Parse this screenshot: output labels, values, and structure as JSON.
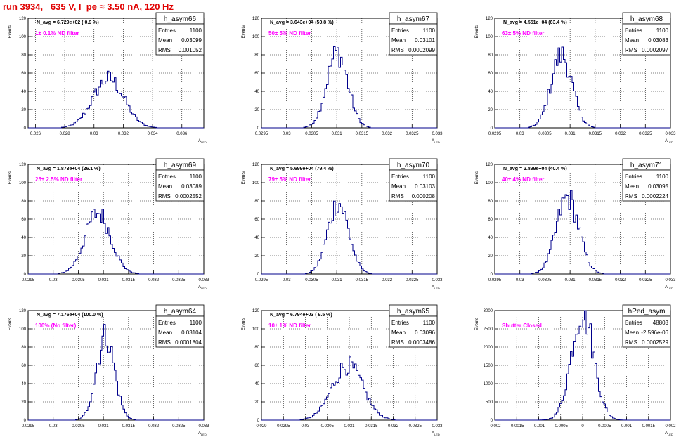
{
  "canvas_title": "run 3934,   635 V, I_pe ≈ 3.50 nA, 120 Hz",
  "colors": {
    "title": "#e00000",
    "annotation": "#ff00ff",
    "histogram": "#00008b",
    "grid": "#000000"
  },
  "panel_labels": {
    "entries": "Entries",
    "mean": "Mean",
    "rms": "RMS",
    "xlabel": "A",
    "xlabel_sub": "LED",
    "ylabel": "Events"
  },
  "chart_data": [
    {
      "type": "histogram",
      "title": "h_asym66",
      "stats": {
        "entries": "1100",
        "mean": "0.03099",
        "rms": "0.001052"
      },
      "n_avg": "N_avg = 6.729e+02 ( 0.9 %)",
      "filter": "1± 0.1% ND filter",
      "xlim": [
        0.0255,
        0.0375
      ],
      "ylim": [
        0,
        120
      ],
      "xticks": [
        "0.026",
        "0.028",
        "0.03",
        "0.032",
        "0.034",
        "0.036"
      ],
      "yticks": [
        "0",
        "20",
        "40",
        "60",
        "80",
        "100",
        "120"
      ],
      "peak": 54,
      "center": 0.03099,
      "sigma": 0.001052,
      "grid": true
    },
    {
      "type": "histogram",
      "title": "h_asym67",
      "stats": {
        "entries": "1100",
        "mean": "0.03101",
        "rms": "0.0002099"
      },
      "n_avg": "N_avg = 3.643e+04 (50.8 %)",
      "filter": "50± 5% ND filter",
      "xlim": [
        0.0295,
        0.033
      ],
      "ylim": [
        0,
        120
      ],
      "xticks": [
        "0.0295",
        "0.03",
        "0.0305",
        "0.031",
        "0.0315",
        "0.032",
        "0.0325",
        "0.033"
      ],
      "yticks": [
        "0",
        "20",
        "40",
        "60",
        "80",
        "100",
        "120"
      ],
      "peak": 82,
      "center": 0.03101,
      "sigma": 0.0002099,
      "grid": true
    },
    {
      "type": "histogram",
      "title": "h_asym68",
      "stats": {
        "entries": "1100",
        "mean": "0.03083",
        "rms": "0.0002097"
      },
      "n_avg": "N_avg = 4.551e+04 (63.4 %)",
      "filter": "63± 5% ND filter",
      "xlim": [
        0.0295,
        0.033
      ],
      "ylim": [
        0,
        120
      ],
      "xticks": [
        "0.0295",
        "0.03",
        "0.0305",
        "0.031",
        "0.0315",
        "0.032",
        "0.0325",
        "0.033"
      ],
      "yticks": [
        "0",
        "20",
        "40",
        "60",
        "80",
        "100",
        "120"
      ],
      "peak": 80,
      "center": 0.03083,
      "sigma": 0.0002097,
      "grid": true
    },
    {
      "type": "histogram",
      "title": "h_asym69",
      "stats": {
        "entries": "1100",
        "mean": "0.03089",
        "rms": "0.0002552"
      },
      "n_avg": "N_avg = 1.873e+04 (26.1 %)",
      "filter": "25± 2.5% ND filter",
      "xlim": [
        0.0295,
        0.033
      ],
      "ylim": [
        0,
        120
      ],
      "xticks": [
        "0.0295",
        "0.03",
        "0.0305",
        "0.031",
        "0.0315",
        "0.032",
        "0.0325",
        "0.033"
      ],
      "yticks": [
        "0",
        "20",
        "40",
        "60",
        "80",
        "100",
        "120"
      ],
      "peak": 67,
      "center": 0.03089,
      "sigma": 0.0002552,
      "grid": true
    },
    {
      "type": "histogram",
      "title": "h_asym70",
      "stats": {
        "entries": "1100",
        "mean": "0.03103",
        "rms": "0.000208"
      },
      "n_avg": "N_avg = 5.699e+04 (79.4 %)",
      "filter": "79± 5% ND filter",
      "xlim": [
        0.0295,
        0.033
      ],
      "ylim": [
        0,
        120
      ],
      "xticks": [
        "0.0295",
        "0.03",
        "0.0305",
        "0.031",
        "0.0315",
        "0.032",
        "0.0325",
        "0.033"
      ],
      "yticks": [
        "0",
        "20",
        "40",
        "60",
        "80",
        "100",
        "120"
      ],
      "peak": 78,
      "center": 0.03103,
      "sigma": 0.000208,
      "grid": true
    },
    {
      "type": "histogram",
      "title": "h_asym71",
      "stats": {
        "entries": "1100",
        "mean": "0.03095",
        "rms": "0.0002224"
      },
      "n_avg": "N_avg = 2.899e+04 (40.4 %)",
      "filter": "40± 4% ND filter",
      "xlim": [
        0.0295,
        0.033
      ],
      "ylim": [
        0,
        120
      ],
      "xticks": [
        "0.0295",
        "0.03",
        "0.0305",
        "0.031",
        "0.0315",
        "0.032",
        "0.0325",
        "0.033"
      ],
      "yticks": [
        "0",
        "20",
        "40",
        "60",
        "80",
        "100",
        "120"
      ],
      "peak": 84,
      "center": 0.03095,
      "sigma": 0.0002224,
      "grid": true
    },
    {
      "type": "histogram",
      "title": "h_asym64",
      "stats": {
        "entries": "1100",
        "mean": "0.03104",
        "rms": "0.0001804"
      },
      "n_avg": "N_avg = 7.176e+04 (100.0 %)",
      "filter": "100% (No filter)",
      "xlim": [
        0.0295,
        0.033
      ],
      "ylim": [
        0,
        120
      ],
      "xticks": [
        "0.0295",
        "0.03",
        "0.0305",
        "0.031",
        "0.0315",
        "0.032",
        "0.0325",
        "0.033"
      ],
      "yticks": [
        "0",
        "20",
        "40",
        "60",
        "80",
        "100",
        "120"
      ],
      "peak": 92,
      "center": 0.03104,
      "sigma": 0.0001804,
      "grid": true
    },
    {
      "type": "histogram",
      "title": "h_asym65",
      "stats": {
        "entries": "1100",
        "mean": "0.03096",
        "rms": "0.0003486"
      },
      "n_avg": "N_avg = 6.794e+03 ( 9.5 %)",
      "filter": "10± 1% ND filter",
      "xlim": [
        0.029,
        0.033
      ],
      "ylim": [
        0,
        120
      ],
      "xticks": [
        "0.029",
        "0.0295",
        "0.03",
        "0.0305",
        "0.031",
        "0.0315",
        "0.032",
        "0.0325",
        "0.033"
      ],
      "yticks": [
        "0",
        "20",
        "40",
        "60",
        "80",
        "100",
        "120"
      ],
      "peak": 60,
      "center": 0.03096,
      "sigma": 0.0003486,
      "grid": true
    },
    {
      "type": "histogram",
      "title": "hPed_asym",
      "stats": {
        "entries": "48803",
        "mean": "-2.596e-06",
        "rms": "0.0002529"
      },
      "n_avg": "",
      "filter": "Shutter Closed",
      "xlim": [
        -0.002,
        0.002
      ],
      "ylim": [
        0,
        3000
      ],
      "xticks": [
        "-0.002",
        "-0.0015",
        "-0.001",
        "-0.0005",
        "0",
        "0.0005",
        "0.001",
        "0.0015",
        "0.002"
      ],
      "yticks": [
        "0",
        "500",
        "1000",
        "1500",
        "2000",
        "2500",
        "3000"
      ],
      "peak": 2980,
      "center": -2.596e-06,
      "sigma": 0.0002529,
      "grid": true
    }
  ]
}
